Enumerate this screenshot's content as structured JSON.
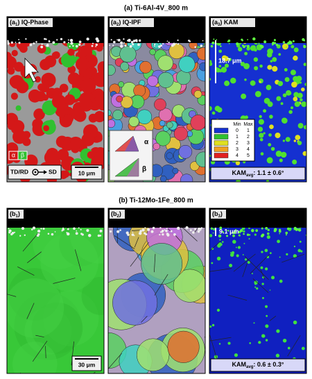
{
  "figure_a": {
    "title": "(a) Ti-6Al-4V_800 m",
    "panels": [
      {
        "label_open": "(a",
        "label_sub": "1",
        "label_close": ") IQ-Phase"
      },
      {
        "label_open": "(a",
        "label_sub": "2",
        "label_close": ") IQ-IPF"
      },
      {
        "label_open": "(a",
        "label_sub": "3",
        "label_close": ") KAM"
      }
    ],
    "phase_legend": [
      "α",
      "β"
    ],
    "direction": {
      "left": "TD/RD",
      "right": "SD"
    },
    "scale_bar": "10 μm",
    "ipf_legend": [
      "α",
      "β"
    ],
    "layer_depth": "18.7 μm",
    "kam_legend": {
      "headers": [
        "Min",
        "Max"
      ],
      "rows": [
        [
          "0",
          "1"
        ],
        [
          "1",
          "2"
        ],
        [
          "2",
          "3"
        ],
        [
          "3",
          "4"
        ],
        [
          "4",
          "5"
        ]
      ]
    },
    "kam_avg": {
      "main": "KAM",
      "sub": "avg",
      "rest": ": 1.1 ± 0.6°"
    }
  },
  "figure_b": {
    "title": "(b) Ti-12Mo-1Fe_800 m",
    "panels": [
      {
        "label_open": "(b",
        "label_sub": "1",
        "label_close": ")"
      },
      {
        "label_open": "(b",
        "label_sub": "2",
        "label_close": ")"
      },
      {
        "label_open": "(b",
        "label_sub": "3",
        "label_close": ")"
      }
    ],
    "scale_bar": "30 μm",
    "layer_depth": "9.1 μm",
    "kam_avg": {
      "main": "KAM",
      "sub": "avg",
      "rest": ": 0.6 ± 0.3°"
    }
  }
}
